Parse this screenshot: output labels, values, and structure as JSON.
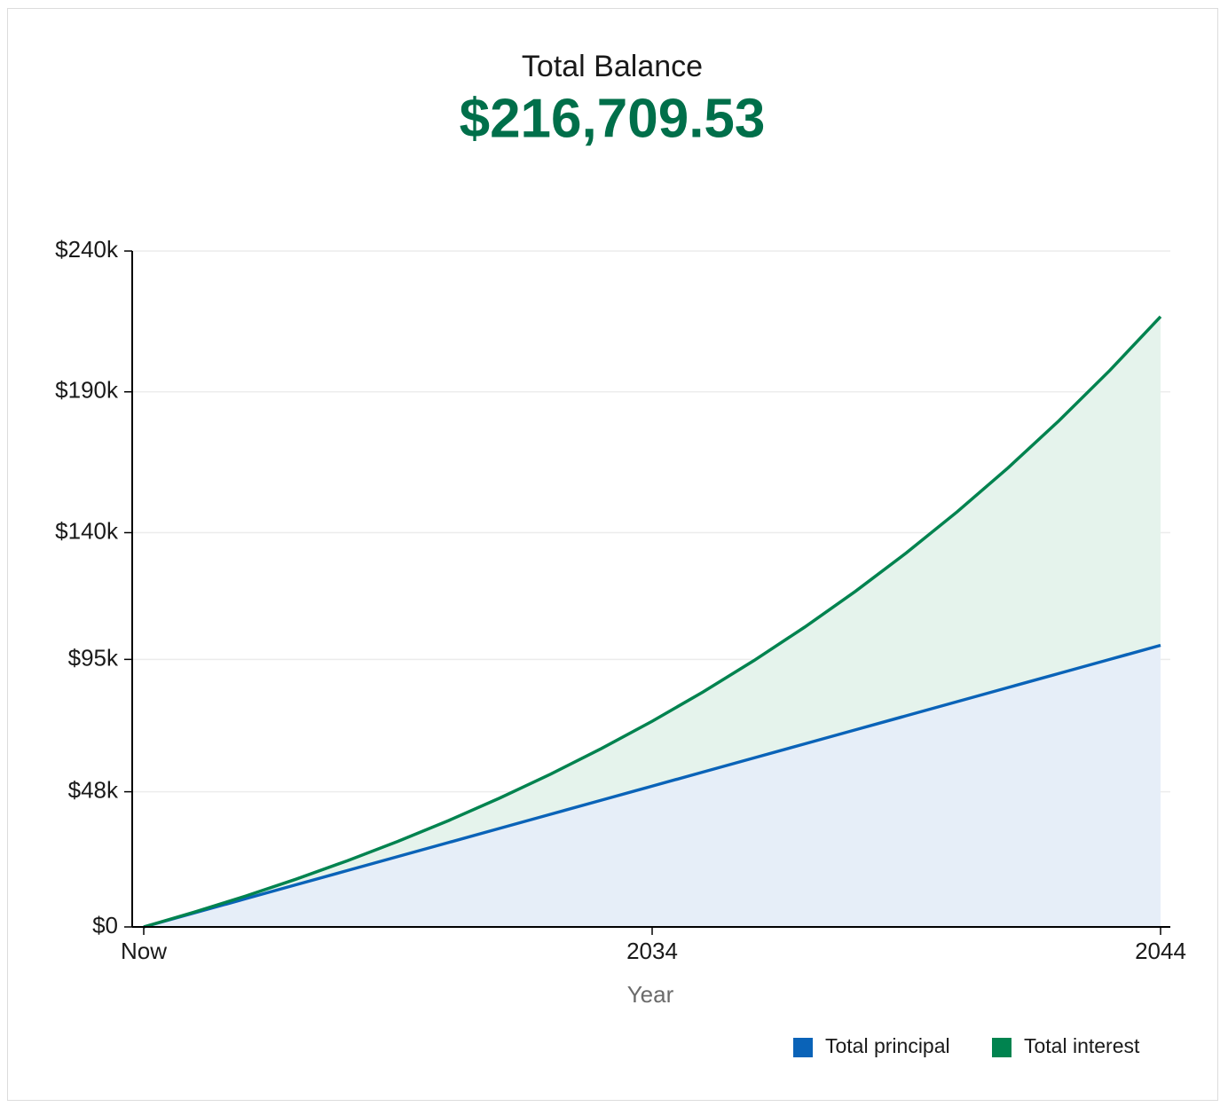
{
  "chart_data": {
    "type": "stacked_area",
    "title": "Total Balance",
    "subtitle": "$216,709.53",
    "x_label": "Year",
    "categories": [
      "Now",
      null,
      null,
      null,
      null,
      null,
      null,
      null,
      null,
      null,
      "2034",
      null,
      null,
      null,
      null,
      null,
      null,
      null,
      null,
      null,
      "2044"
    ],
    "series": [
      {
        "name": "Total principal",
        "color": "#0a63b8",
        "fill": "#e6eef8",
        "values": [
          0,
          5000,
          10000,
          15000,
          20000,
          25000,
          30000,
          35000,
          40000,
          45000,
          50000,
          55000,
          60000,
          65000,
          70000,
          75000,
          80000,
          85000,
          90000,
          95000,
          100000
        ]
      },
      {
        "name": "Total interest",
        "color": "#00834f",
        "fill": "#e5f3ec",
        "values": [
          0,
          286,
          944,
          1995,
          3471,
          5400,
          7810,
          10747,
          14234,
          18315,
          23036,
          28435,
          34556,
          41454,
          49193,
          57824,
          67413,
          78014,
          89711,
          102578,
          116709.53
        ]
      }
    ],
    "ylim": [
      0,
      240000
    ],
    "yticks": [
      {
        "value": 0,
        "label": "$0"
      },
      {
        "value": 48000,
        "label": "$48k"
      },
      {
        "value": 95000,
        "label": "$95k"
      },
      {
        "value": 140000,
        "label": "$140k"
      },
      {
        "value": 190000,
        "label": "$190k"
      },
      {
        "value": 240000,
        "label": "$240k"
      }
    ],
    "grid": true,
    "legend": "bottom-right"
  }
}
